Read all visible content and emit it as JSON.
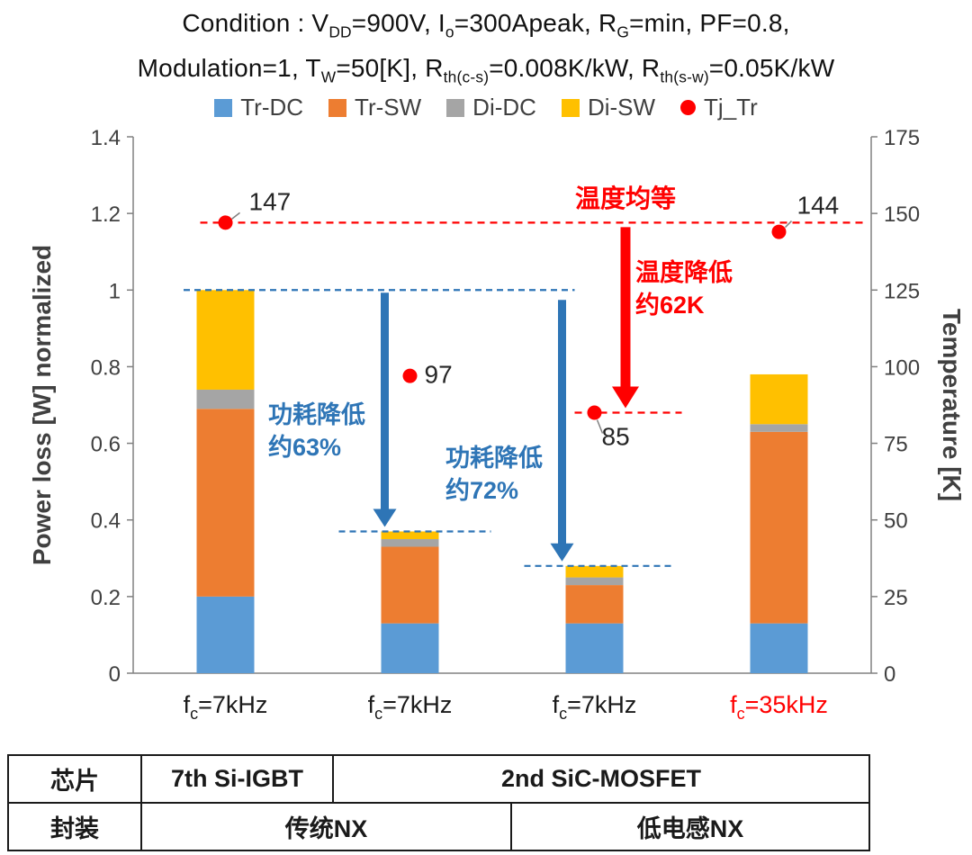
{
  "title": {
    "line1": [
      {
        "t": "Condition : V"
      },
      {
        "t": "DD",
        "sub": true
      },
      {
        "t": "=900V, I"
      },
      {
        "t": "o",
        "sub": true
      },
      {
        "t": "=300Apeak, R"
      },
      {
        "t": "G",
        "sub": true
      },
      {
        "t": "=min, PF=0.8,"
      }
    ],
    "line2": [
      {
        "t": "Modulation=1, T"
      },
      {
        "t": "W",
        "sub": true
      },
      {
        "t": "=50[K], R"
      },
      {
        "t": "th(c-s)",
        "sub": true
      },
      {
        "t": "=0.008K/kW, R"
      },
      {
        "t": "th(s-w)",
        "sub": true
      },
      {
        "t": "=0.05K/kW"
      }
    ]
  },
  "chart_data": {
    "type": "bar",
    "stacked": true,
    "categories": [
      "fc=7kHz",
      "fc=7kHz",
      "fc=7kHz",
      "fc=35kHz"
    ],
    "categories_rich": [
      [
        {
          "t": "f"
        },
        {
          "t": "c",
          "sub": true
        },
        {
          "t": "=7kHz"
        }
      ],
      [
        {
          "t": "f"
        },
        {
          "t": "c",
          "sub": true
        },
        {
          "t": "=7kHz"
        }
      ],
      [
        {
          "t": "f"
        },
        {
          "t": "c",
          "sub": true
        },
        {
          "t": "=7kHz"
        }
      ],
      [
        {
          "t": "f"
        },
        {
          "t": "c",
          "sub": true
        },
        {
          "t": "=35kHz"
        }
      ]
    ],
    "category_colors": [
      "#1a1a1a",
      "#1a1a1a",
      "#1a1a1a",
      "#FF0000"
    ],
    "series": [
      {
        "name": "Tr-DC",
        "color": "#5B9BD5",
        "values": [
          0.2,
          0.13,
          0.13,
          0.13
        ]
      },
      {
        "name": "Tr-SW",
        "color": "#ED7D31",
        "values": [
          0.49,
          0.2,
          0.1,
          0.5
        ]
      },
      {
        "name": "Di-DC",
        "color": "#A5A5A5",
        "values": [
          0.05,
          0.02,
          0.02,
          0.02
        ]
      },
      {
        "name": "Di-SW",
        "color": "#FFC000",
        "values": [
          0.26,
          0.02,
          0.03,
          0.13
        ]
      }
    ],
    "temperature_series": {
      "name": "Tj_Tr",
      "color": "#FF0000",
      "values": [
        147,
        97,
        85,
        144
      ]
    },
    "left_axis": {
      "label": "Power loss [W] normalized",
      "min": 0,
      "max": 1.4,
      "step": 0.2
    },
    "right_axis": {
      "label": "Temperature [K]",
      "min": 0,
      "max": 175,
      "step": 25
    },
    "annotations": {
      "temp_equal": "温度均等",
      "temp_drop_lines": [
        "温度降低",
        "约62K"
      ],
      "power_drop1_lines": [
        "功耗降低",
        "约63%"
      ],
      "power_drop2_lines": [
        "功耗降低",
        "约72%"
      ],
      "blue_dashed_levels": [
        1.0,
        0.37,
        0.28
      ],
      "red_dashed_levels": [
        147,
        85
      ]
    }
  },
  "table": {
    "row1": {
      "header": "芯片",
      "cell1": "7th Si-IGBT",
      "cell2": "2nd SiC-MOSFET"
    },
    "row2": {
      "header": "封装",
      "cell1": "传统NX",
      "cell2": "低电感NX"
    }
  },
  "colors": {
    "blue_annotation": "#2E75B6",
    "red_annotation": "#FF0000",
    "axis_line": "#808080",
    "tick_label": "#404040",
    "point_label": "#262626"
  }
}
